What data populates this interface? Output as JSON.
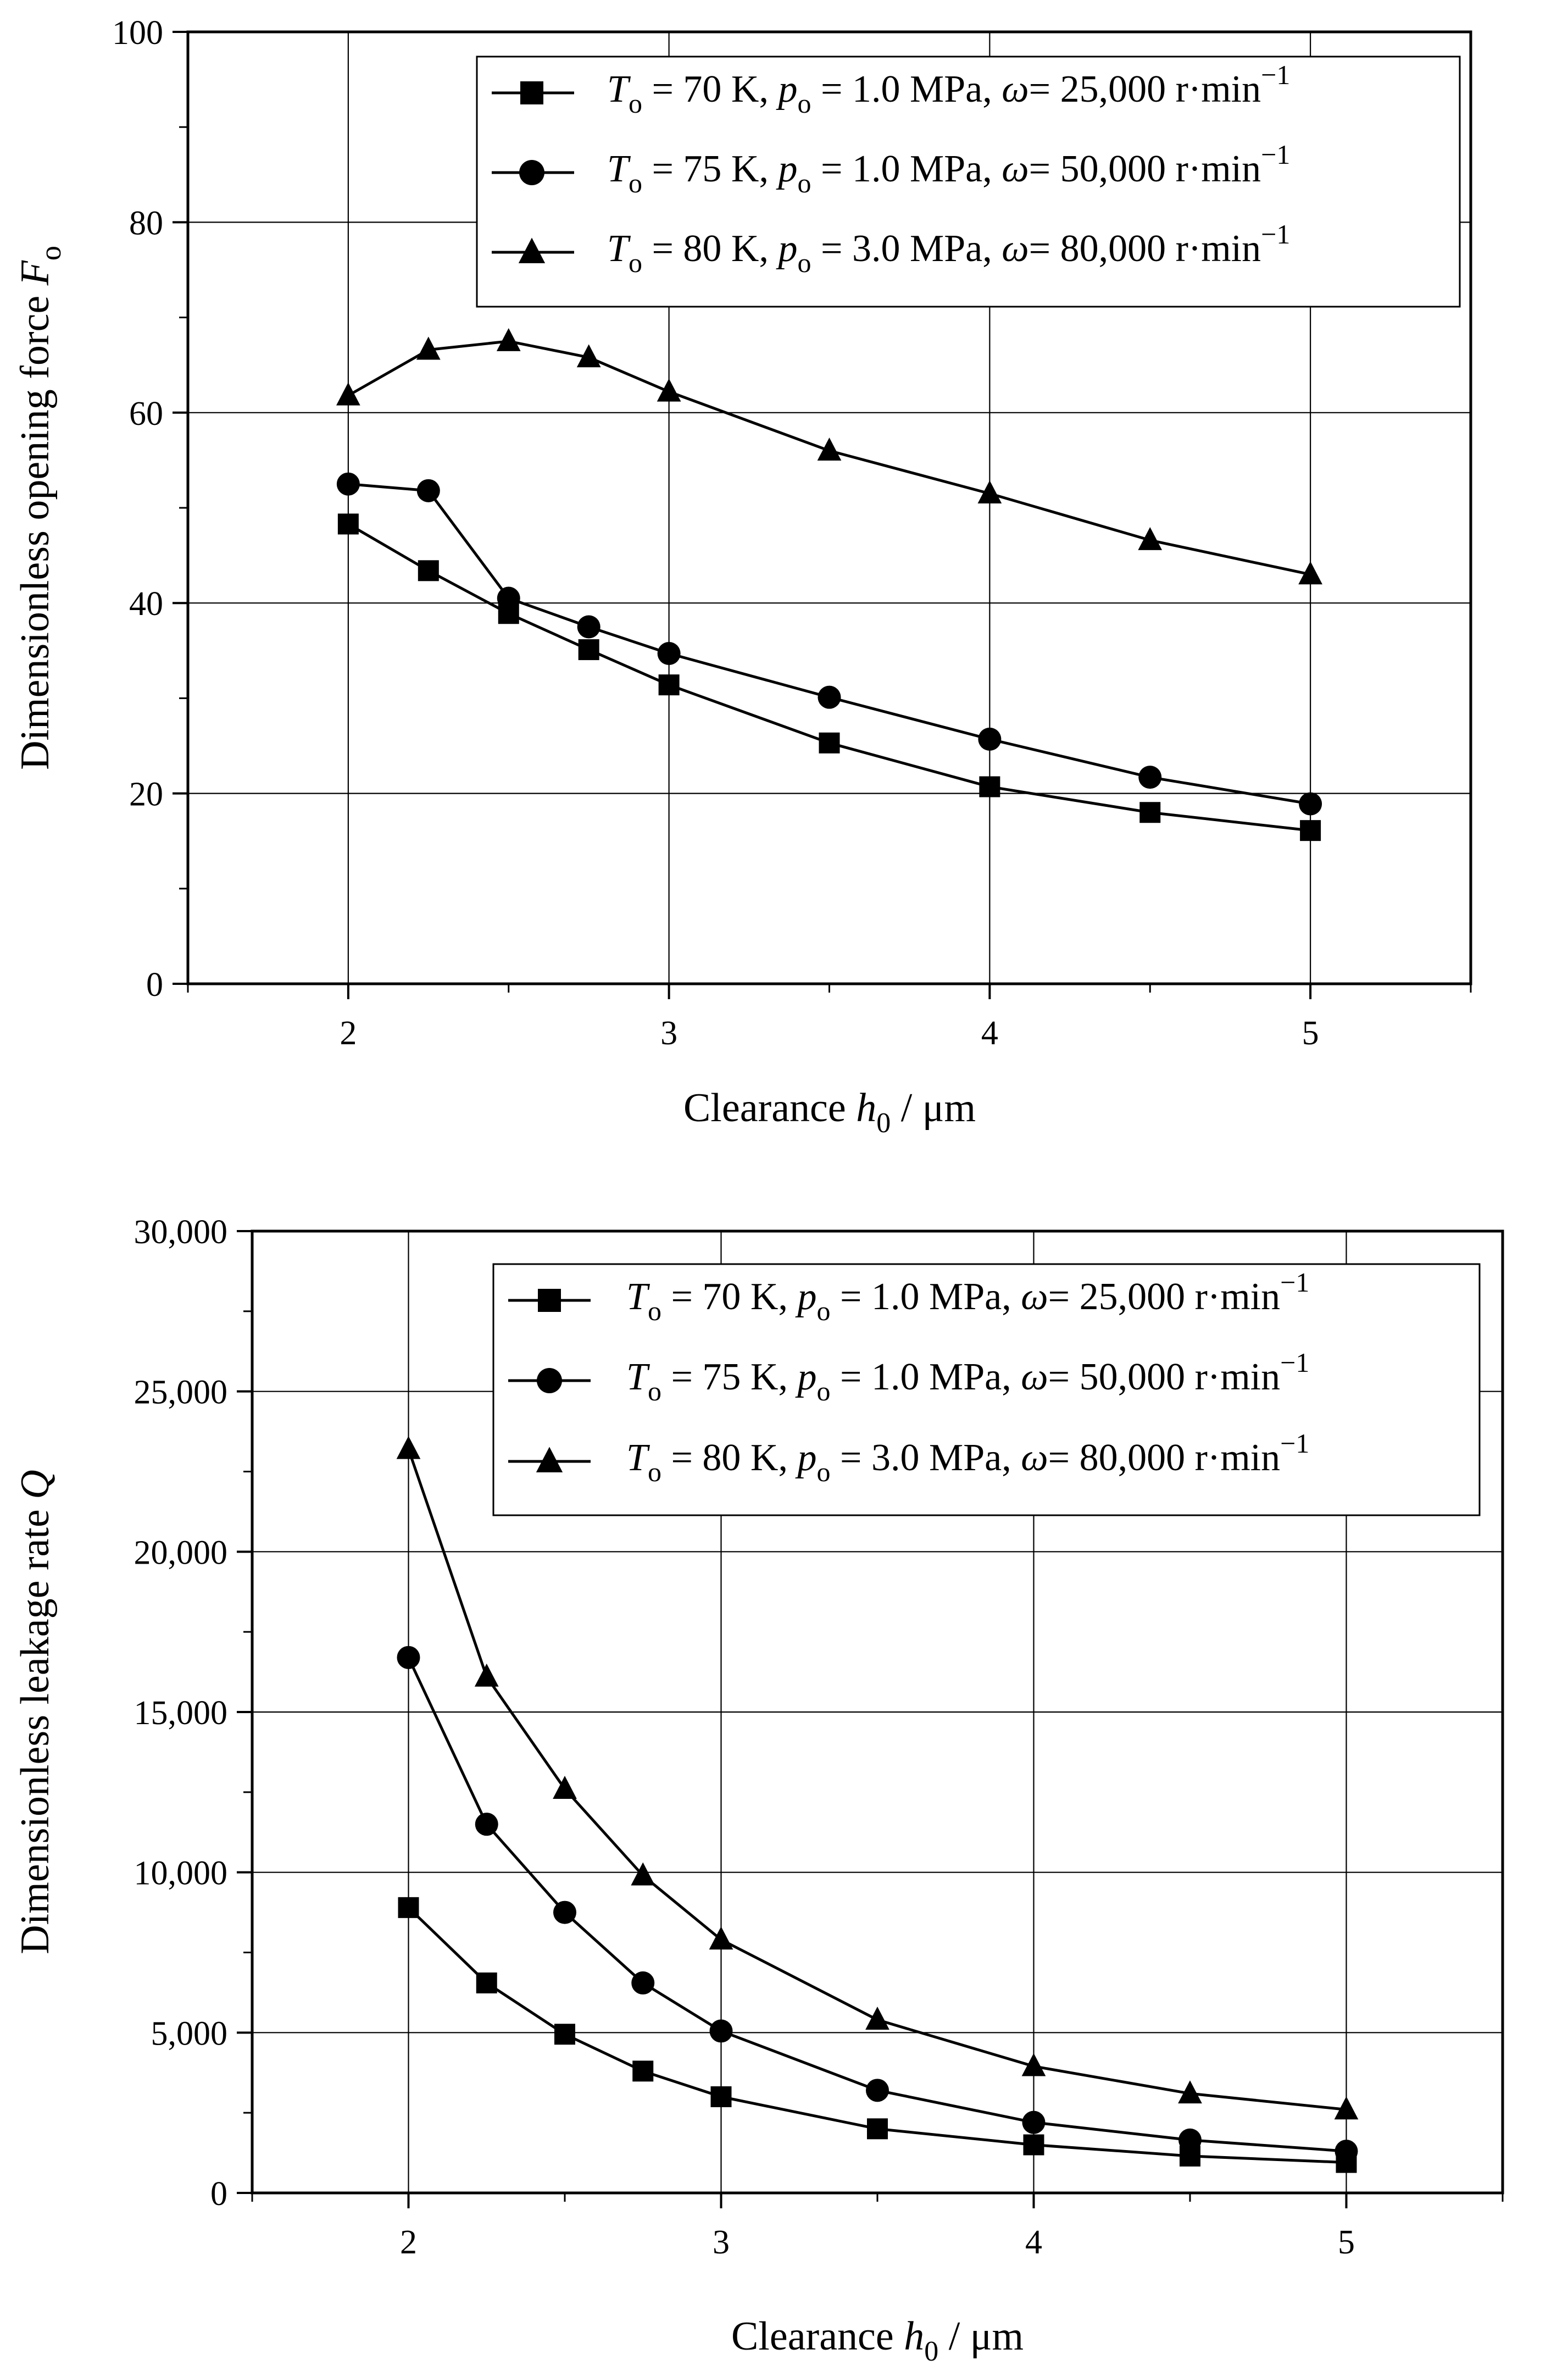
{
  "chart_data": [
    {
      "type": "line",
      "id": "opening-force",
      "xlabel": {
        "prefix": "Clearance",
        "symbol": "h",
        "subscript": "0",
        "unit": "/  μm"
      },
      "ylabel": {
        "text": "Dimensionless opening force",
        "symbol": "F",
        "subscript": "o"
      },
      "xlim": [
        1.5,
        5.5
      ],
      "ylim": [
        0,
        100
      ],
      "x_ticks": [
        2,
        3,
        4,
        5
      ],
      "x_tick_labels": [
        "2",
        "3",
        "4",
        "5"
      ],
      "y_ticks": [
        0,
        20,
        40,
        60,
        80,
        100
      ],
      "y_tick_labels": [
        "0",
        "20",
        "40",
        "60",
        "80",
        "100"
      ],
      "grid": true,
      "legend_position": "top-right",
      "series": [
        {
          "name": "T_o = 70 K, p_o = 1.0 MPa, ω = 25,000 r·min^-1",
          "marker": "square",
          "legend": {
            "T": "T",
            "Tsub": "o",
            "Tval": " = 70 K, ",
            "p": "p",
            "psub": "o",
            "pval": " = 1.0 MPa, ",
            "w": "ω",
            "wval": "= 25,000 r·min",
            "exp": "−1"
          },
          "x": [
            2,
            2.25,
            2.5,
            2.75,
            3,
            3.5,
            4,
            4.5,
            5
          ],
          "values": [
            48.3,
            43.4,
            38.9,
            35.1,
            31.4,
            25.3,
            20.7,
            18.0,
            16.1
          ]
        },
        {
          "name": "T_o = 75 K, p_o = 1.0 MPa, ω = 50,000 r·min^-1",
          "marker": "circle",
          "legend": {
            "T": "T",
            "Tsub": "o",
            "Tval": " = 75 K, ",
            "p": "p",
            "psub": "o",
            "pval": " = 1.0 MPa, ",
            "w": "ω",
            "wval": "= 50,000 r·min",
            "exp": "−1"
          },
          "x": [
            2,
            2.25,
            2.5,
            2.75,
            3,
            3.5,
            4,
            4.5,
            5
          ],
          "values": [
            52.5,
            51.8,
            40.5,
            37.5,
            34.7,
            30.1,
            25.7,
            21.7,
            18.9
          ]
        },
        {
          "name": "T_o = 80 K, p_o = 3.0 MPa, ω = 80,000 r·min^-1",
          "marker": "triangle",
          "legend": {
            "T": "T",
            "Tsub": "o",
            "Tval": " = 80 K, ",
            "p": "p",
            "psub": "o",
            "pval": " = 3.0 MPa, ",
            "w": "ω",
            "wval": "= 80,000 r·min",
            "exp": "−1"
          },
          "x": [
            2,
            2.25,
            2.5,
            2.75,
            3,
            3.5,
            4,
            4.5,
            5
          ],
          "values": [
            61.8,
            66.6,
            67.5,
            65.8,
            62.2,
            56.0,
            51.5,
            46.6,
            43.0
          ]
        }
      ]
    },
    {
      "type": "line",
      "id": "leakage-rate",
      "xlabel": {
        "prefix": "Clearance",
        "symbol": "h",
        "subscript": "0",
        "unit": "/  μm"
      },
      "ylabel": {
        "text": "Dimensionless leakage rate",
        "symbol": "Q",
        "subscript": ""
      },
      "xlim": [
        1.5,
        5.5
      ],
      "ylim": [
        0,
        30000
      ],
      "x_ticks": [
        2,
        3,
        4,
        5
      ],
      "x_tick_labels": [
        "2",
        "3",
        "4",
        "5"
      ],
      "y_ticks": [
        0,
        5000,
        10000,
        15000,
        20000,
        25000,
        30000
      ],
      "y_tick_labels": [
        "0",
        "5,000",
        "10,000",
        "15,000",
        "20,000",
        "25,000",
        "30,000"
      ],
      "grid": true,
      "legend_position": "top-right",
      "series": [
        {
          "name": "T_o = 70 K, p_o = 1.0 MPa, ω = 25,000 r·min^-1",
          "marker": "square",
          "legend": {
            "T": "T",
            "Tsub": "o",
            "Tval": " = 70 K, ",
            "p": "p",
            "psub": "o",
            "pval": " = 1.0 MPa, ",
            "w": "ω",
            "wval": "= 25,000 r·min",
            "exp": "−1"
          },
          "x": [
            2,
            2.25,
            2.5,
            2.75,
            3,
            3.5,
            4,
            4.5,
            5
          ],
          "values": [
            8900,
            6550,
            4950,
            3800,
            3000,
            2000,
            1500,
            1150,
            950
          ]
        },
        {
          "name": "T_o = 75 K, p_o = 1.0 MPa, ω = 50,000 r·min^-1",
          "marker": "circle",
          "legend": {
            "T": "T",
            "Tsub": "o",
            "Tval": " = 75 K, ",
            "p": "p",
            "psub": "o",
            "pval": " = 1.0 MPa, ",
            "w": "ω",
            "wval": "= 50,000 r·min",
            "exp": "−1"
          },
          "x": [
            2,
            2.25,
            2.5,
            2.75,
            3,
            3.5,
            4,
            4.5,
            5
          ],
          "values": [
            16700,
            11500,
            8750,
            6550,
            5050,
            3200,
            2200,
            1650,
            1300
          ]
        },
        {
          "name": "T_o = 80 K, p_o = 3.0 MPa, ω = 80,000 r·min^-1",
          "marker": "triangle",
          "legend": {
            "T": "T",
            "Tsub": "o",
            "Tval": " = 80 K, ",
            "p": "p",
            "psub": "o",
            "pval": " = 3.0 MPa, ",
            "w": "ω",
            "wval": "= 80,000 r·min",
            "exp": "−1"
          },
          "x": [
            2,
            2.25,
            2.5,
            2.75,
            3,
            3.5,
            4,
            4.5,
            5
          ],
          "values": [
            23200,
            16100,
            12600,
            9900,
            7900,
            5400,
            3950,
            3100,
            2600
          ]
        }
      ]
    }
  ]
}
